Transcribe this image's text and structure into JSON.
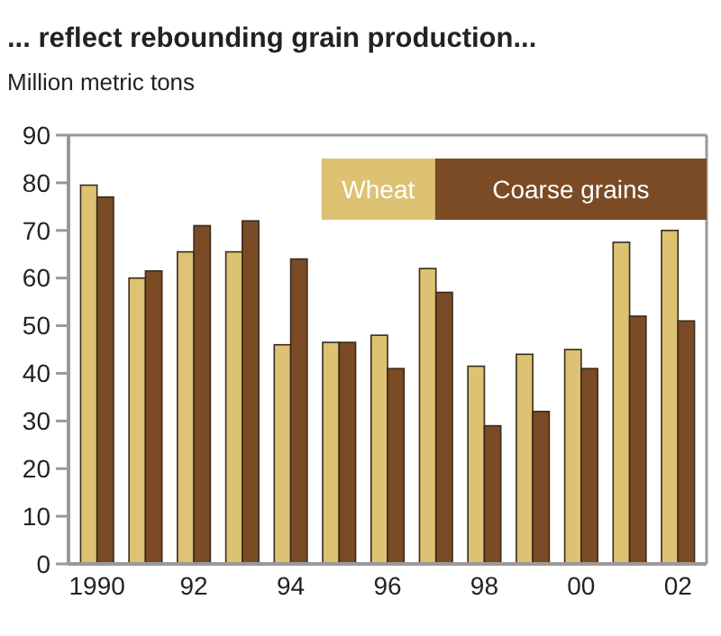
{
  "chart_data": {
    "type": "bar",
    "title": "... reflect rebounding grain production...",
    "ylabel": "Million metric tons",
    "categories": [
      "1990",
      null,
      "92",
      null,
      "94",
      null,
      "96",
      null,
      "98",
      null,
      "00",
      null,
      "02"
    ],
    "series": [
      {
        "name": "Wheat",
        "color": "#dcc272",
        "values": [
          79.5,
          60,
          65.5,
          65.5,
          46,
          46.5,
          48,
          62,
          41.5,
          44,
          45,
          67.5,
          70
        ]
      },
      {
        "name": "Coarse grains",
        "color": "#7a4b25",
        "values": [
          77,
          61.5,
          71,
          72,
          64,
          46.5,
          41,
          57,
          29,
          32,
          41,
          52,
          51
        ]
      }
    ],
    "ylim": [
      0,
      90
    ],
    "yticks": [
      0,
      10,
      20,
      30,
      40,
      50,
      60,
      70,
      80,
      90
    ],
    "grid": false,
    "legend": "top right"
  }
}
